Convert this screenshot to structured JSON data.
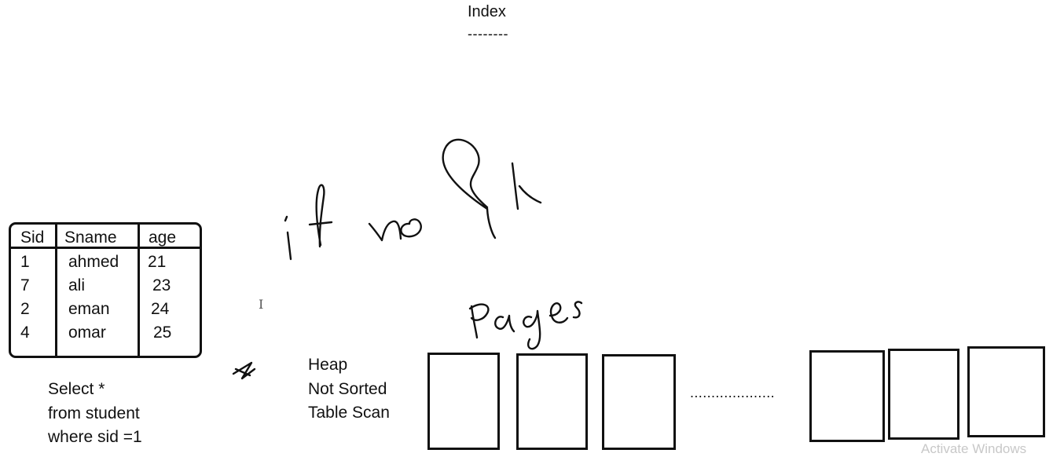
{
  "heading": {
    "title": "Index",
    "underline": "--------"
  },
  "student_table": {
    "headers": [
      "Sid",
      "Sname",
      "age"
    ],
    "rows": [
      [
        "1",
        "ahmed",
        "21"
      ],
      [
        "7",
        "ali",
        "23"
      ],
      [
        "2",
        "eman",
        "24"
      ],
      [
        "4",
        "omar",
        "25"
      ]
    ]
  },
  "query": {
    "lines": [
      "Select *",
      "from student",
      "where sid =1"
    ]
  },
  "heap_notes": {
    "lines": [
      "Heap",
      "Not Sorted",
      "Table Scan"
    ]
  },
  "handwriting": {
    "note": "if no PK",
    "pages_label": "Pages"
  },
  "pages_row": {
    "ellipsis": "...................."
  },
  "cursor_glyph": "I",
  "watermark": "Activate Windows",
  "colors": {
    "ink": "#111111",
    "background": "#ffffff",
    "watermark": "#c8c8c8"
  }
}
